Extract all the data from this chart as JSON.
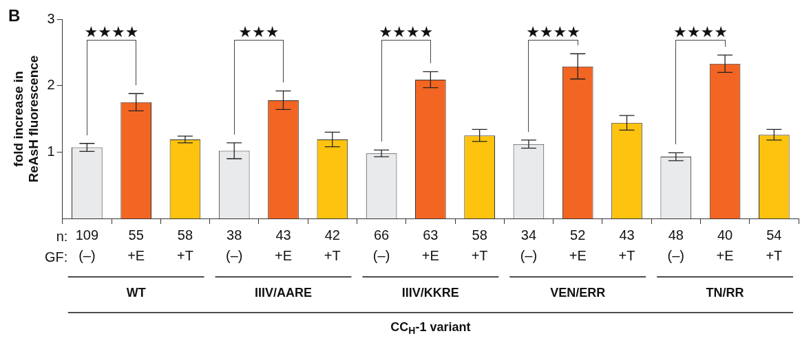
{
  "chart_data": {
    "type": "bar",
    "title": "B",
    "xlabel": "CC$_{H}$-1 variant",
    "ylabel": "fold increase in\nReAsH fluorescence",
    "categories": [
      "109\n(–)",
      "55\n+E",
      "58\n+T",
      "38\n(–)",
      "43\n+E",
      "42\n+T",
      "66\n(–)",
      "63\n+E",
      "58\n+T",
      "34\n(–)",
      "52\n+E",
      "43\n+T",
      "48\n(–)",
      "40\n+E",
      "54\n+T"
    ],
    "series": [
      {
        "colors": [
          "#e9eaec",
          "#f26522",
          "#fdc30f",
          "#e9eaec",
          "#f26522",
          "#fdc30f",
          "#e9eaec",
          "#f26522",
          "#fdc30f",
          "#e9eaec",
          "#f26522",
          "#fdc30f",
          "#e9eaec",
          "#f26522",
          "#fdc30f"
        ],
        "values": [
          1.07,
          1.75,
          1.19,
          1.02,
          1.78,
          1.19,
          0.98,
          2.09,
          1.25,
          1.12,
          2.29,
          1.44,
          0.93,
          2.33,
          1.26
        ],
        "errors": [
          0.06,
          0.13,
          0.05,
          0.12,
          0.14,
          0.11,
          0.05,
          0.12,
          0.09,
          0.06,
          0.19,
          0.11,
          0.06,
          0.13,
          0.08
        ]
      }
    ],
    "annotations": [
      "★★★★",
      "★★★",
      "★★★★",
      "★★★★",
      "★★★★",
      "WT",
      "IIIV/AARE",
      "IIIV/KKRE",
      "VEN/ERR",
      "TN/RR",
      "n:",
      "GF:"
    ],
    "ylim": [
      0,
      3
    ],
    "yticks": [
      1,
      2,
      3
    ],
    "grid": false,
    "legend": false
  }
}
